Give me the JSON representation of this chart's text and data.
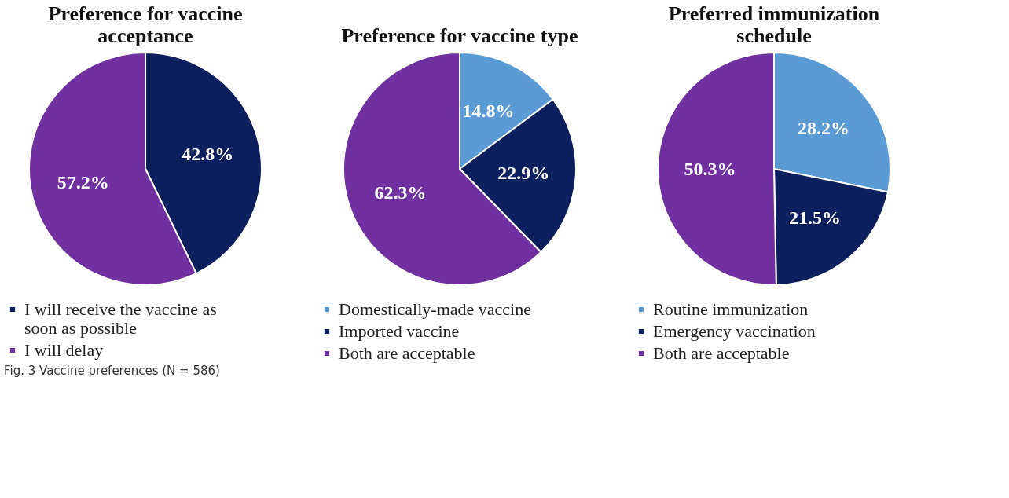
{
  "chart_data": [
    {
      "type": "pie",
      "title": "Preference for vaccine acceptance",
      "categories": [
        "I will receive the vaccine as soon as possible",
        "I will delay"
      ],
      "values": [
        42.8,
        57.2
      ],
      "colors": [
        "#0d1f5c",
        "#7030a0"
      ],
      "value_labels": [
        "42.8%",
        "57.2%"
      ],
      "legend": "bottom",
      "annotations": [
        "Fig. 3 Vaccine preferences (N = 586)"
      ]
    },
    {
      "type": "pie",
      "title": "Preference for vaccine type",
      "categories": [
        "Domestically-made vaccine",
        "Imported vaccine",
        "Both are acceptable"
      ],
      "values": [
        14.8,
        22.9,
        62.3
      ],
      "colors": [
        "#5b9bd5",
        "#0d1f5c",
        "#7030a0"
      ],
      "value_labels": [
        "14.8%",
        "22.9%",
        "62.3%"
      ],
      "legend": "bottom"
    },
    {
      "type": "pie",
      "title": "Preferred immunization schedule",
      "categories": [
        "Routine immunization",
        "Emergency vaccination",
        "Both are acceptable"
      ],
      "values": [
        28.2,
        21.5,
        50.3
      ],
      "colors": [
        "#5b9bd5",
        "#0d1f5c",
        "#7030a0"
      ],
      "value_labels": [
        "28.2%",
        "21.5%",
        "50.3%"
      ],
      "legend": "bottom"
    }
  ]
}
